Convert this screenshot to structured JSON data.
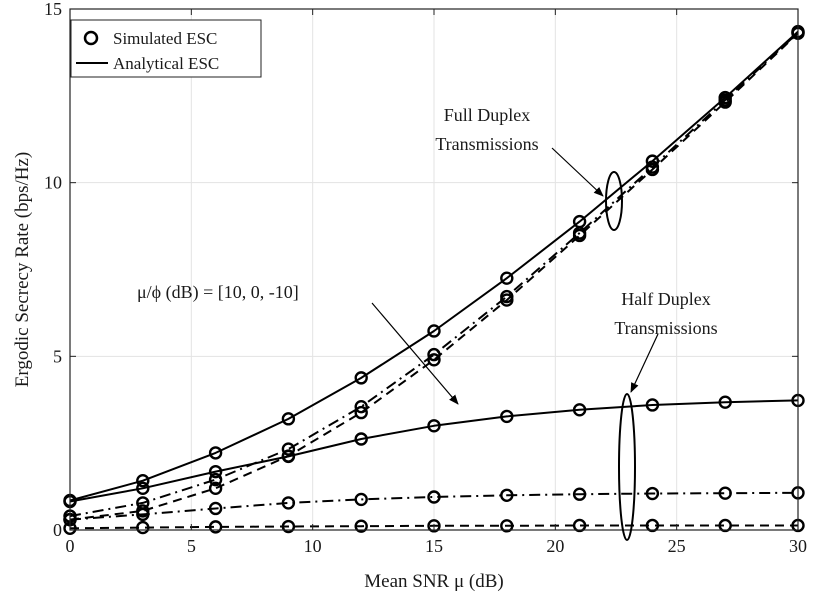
{
  "chart_data": {
    "type": "line",
    "title": "",
    "xlabel": "Mean SNR μ (dB)",
    "ylabel": "Ergodic Secrecy Rate (bps/Hz)",
    "xlim": [
      0,
      30
    ],
    "ylim": [
      0,
      15
    ],
    "xticks": [
      "0",
      "5",
      "10",
      "15",
      "20",
      "25",
      "30"
    ],
    "yticks": [
      "0",
      "5",
      "10",
      "15"
    ],
    "grid": true,
    "legend_position": "top-left",
    "legend": [
      {
        "label": "Simulated ESC",
        "marker": "circle"
      },
      {
        "label": "Analytical ESC",
        "line": "solid"
      }
    ],
    "x": [
      0,
      3,
      6,
      9,
      12,
      15,
      18,
      21,
      24,
      27,
      30
    ],
    "series": [
      {
        "group": "Full Duplex",
        "ratio_db": 10,
        "style": "solid",
        "values": [
          0.85,
          1.42,
          2.22,
          3.2,
          4.38,
          5.73,
          7.25,
          8.88,
          10.62,
          12.45,
          14.35
        ]
      },
      {
        "group": "Full Duplex",
        "ratio_db": 0,
        "style": "dashdot",
        "values": [
          0.4,
          0.78,
          1.45,
          2.33,
          3.55,
          5.05,
          6.72,
          8.55,
          10.45,
          12.38,
          14.32
        ]
      },
      {
        "group": "Full Duplex",
        "ratio_db": -10,
        "style": "dashed",
        "values": [
          0.3,
          0.55,
          1.2,
          2.13,
          3.38,
          4.9,
          6.62,
          8.48,
          10.38,
          12.32,
          14.3
        ]
      },
      {
        "group": "Half Duplex",
        "ratio_db": 10,
        "style": "solid",
        "values": [
          0.82,
          1.2,
          1.68,
          2.12,
          2.62,
          3.0,
          3.27,
          3.46,
          3.6,
          3.68,
          3.73
        ]
      },
      {
        "group": "Half Duplex",
        "ratio_db": 0,
        "style": "dashdot",
        "values": [
          0.3,
          0.45,
          0.62,
          0.78,
          0.88,
          0.95,
          1.0,
          1.03,
          1.05,
          1.06,
          1.07
        ]
      },
      {
        "group": "Half Duplex",
        "ratio_db": -10,
        "style": "dashed",
        "values": [
          0.05,
          0.07,
          0.09,
          0.1,
          0.11,
          0.12,
          0.12,
          0.13,
          0.13,
          0.13,
          0.13
        ]
      }
    ],
    "annotations": {
      "full_duplex": [
        "Full Duplex",
        "Transmissions"
      ],
      "half_duplex": [
        "Half Duplex",
        "Transmissions"
      ],
      "ratio_label": "μ/ϕ (dB) = [10, 0, -10]"
    }
  }
}
